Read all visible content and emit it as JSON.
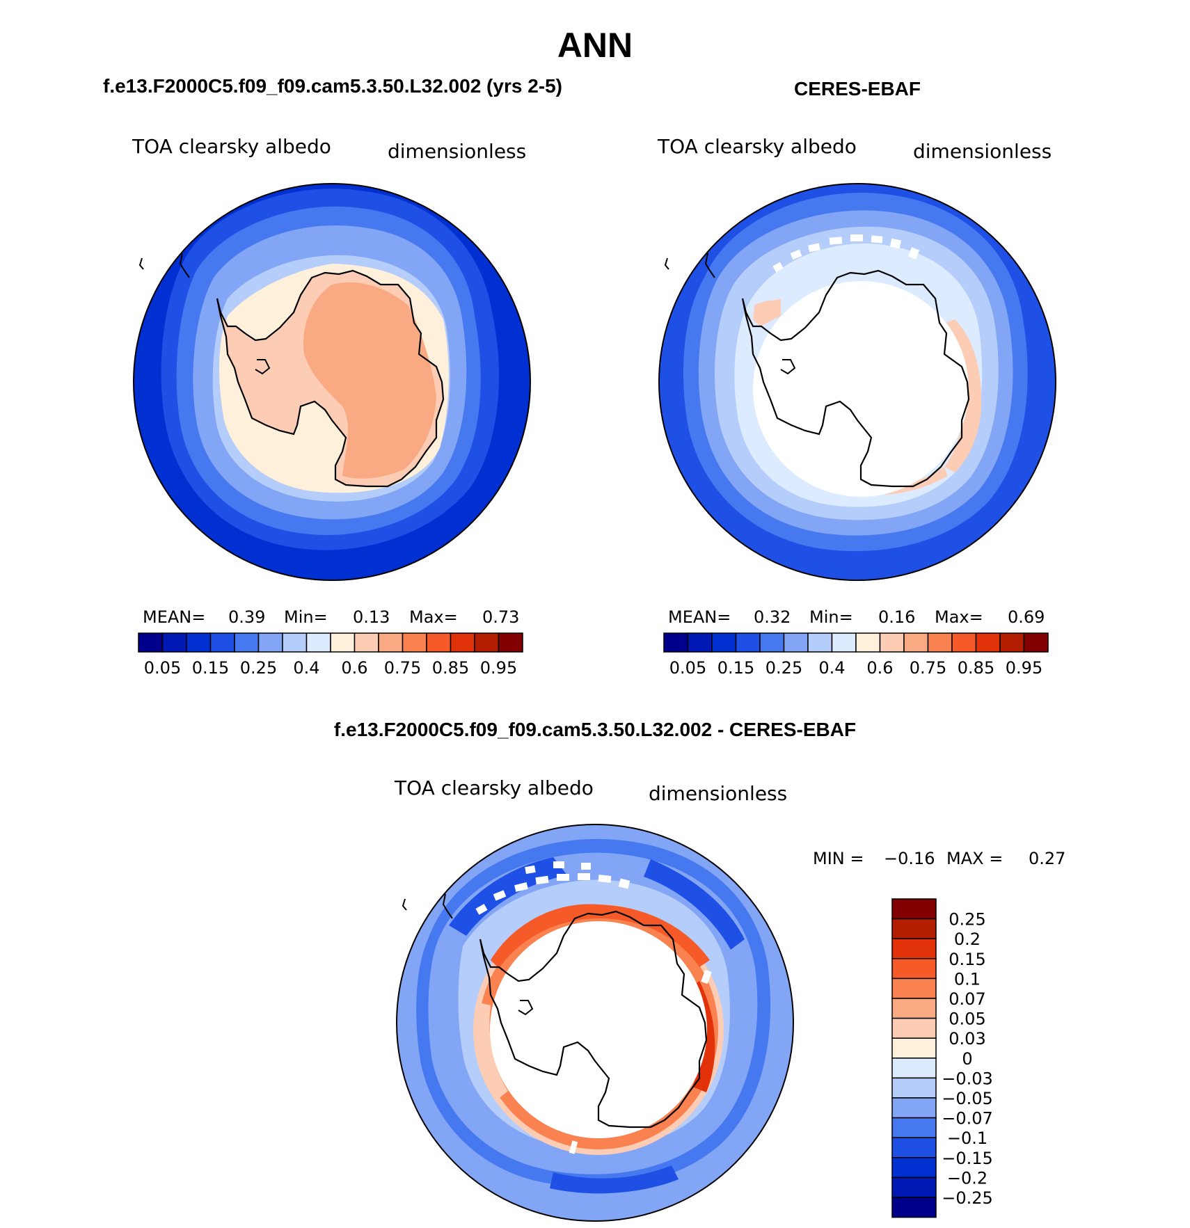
{
  "figure": {
    "title": "ANN"
  },
  "panels": [
    {
      "id": "model",
      "title": "f.e13.F2000C5.f09_f09.cam5.3.50.L32.002 (yrs 2-5)",
      "variable": "TOA clearsky albedo",
      "units": "dimensionless",
      "stats": {
        "mean_label": "MEAN=",
        "mean_value": "0.39",
        "min_label": "Min=",
        "min_value": "0.13",
        "max_label": "Max=",
        "max_value": "0.73"
      }
    },
    {
      "id": "obs",
      "title": "CERES-EBAF",
      "variable": "TOA clearsky albedo",
      "units": "dimensionless",
      "stats": {
        "mean_label": "MEAN=",
        "mean_value": "0.32",
        "min_label": "Min=",
        "min_value": "0.16",
        "max_label": "Max=",
        "max_value": "0.69"
      }
    },
    {
      "id": "diff",
      "title": "f.e13.F2000C5.f09_f09.cam5.3.50.L32.002 - CERES-EBAF",
      "variable": "TOA clearsky albedo",
      "units": "dimensionless",
      "stats": {
        "min_label": "MIN =",
        "min_value": "−0.16",
        "max_label": "MAX =",
        "max_value": "0.27"
      }
    }
  ],
  "colorbars": {
    "albedo": {
      "tick_labels": [
        "0.05",
        "0.15",
        "0.25",
        "0.4",
        "0.6",
        "0.75",
        "0.85",
        "0.95"
      ],
      "colors": [
        "#00008c",
        "#0018b4",
        "#0030d2",
        "#1e50e6",
        "#4678f0",
        "#82a5f5",
        "#b4cdfa",
        "#dcebff",
        "#fff0dc",
        "#fccdb4",
        "#faaa82",
        "#fa8250",
        "#f55a28",
        "#e1320a",
        "#b41e00",
        "#820000"
      ]
    },
    "difference": {
      "tick_labels": [
        "0.25",
        "0.2",
        "0.15",
        "0.1",
        "0.07",
        "0.05",
        "0.03",
        "0",
        "−0.03",
        "−0.05",
        "−0.07",
        "−0.1",
        "−0.15",
        "−0.2",
        "−0.25"
      ],
      "colors": [
        "#820000",
        "#b41e00",
        "#e1320a",
        "#f55a28",
        "#fa8250",
        "#faaa82",
        "#fccdb4",
        "#fff0dc",
        "#dcebff",
        "#b4cdfa",
        "#82a5f5",
        "#4678f0",
        "#1e50e6",
        "#0030d2",
        "#0018b4",
        "#00008c"
      ]
    }
  }
}
